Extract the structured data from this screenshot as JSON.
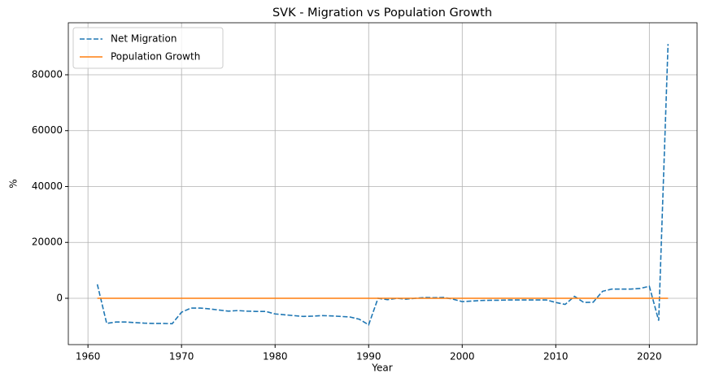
{
  "chart_data": {
    "type": "line",
    "title": "SVK - Migration vs Population Growth",
    "xlabel": "Year",
    "ylabel": "%",
    "x": [
      1961,
      1962,
      1963,
      1964,
      1965,
      1966,
      1967,
      1968,
      1969,
      1970,
      1971,
      1972,
      1973,
      1974,
      1975,
      1976,
      1977,
      1978,
      1979,
      1980,
      1981,
      1982,
      1983,
      1984,
      1985,
      1986,
      1987,
      1988,
      1989,
      1990,
      1991,
      1992,
      1993,
      1994,
      1995,
      1996,
      1997,
      1998,
      1999,
      2000,
      2001,
      2002,
      2003,
      2004,
      2005,
      2006,
      2007,
      2008,
      2009,
      2010,
      2011,
      2012,
      2013,
      2014,
      2015,
      2016,
      2017,
      2018,
      2019,
      2020,
      2021,
      2022
    ],
    "series": [
      {
        "name": "Net Migration",
        "color": "#1f77b4",
        "linestyle": "dashed",
        "values": [
          5000,
          -9000,
          -8500,
          -8500,
          -8700,
          -8900,
          -9000,
          -9000,
          -9100,
          -5000,
          -3500,
          -3500,
          -3800,
          -4200,
          -4600,
          -4400,
          -4600,
          -4700,
          -4700,
          -5600,
          -5900,
          -6200,
          -6500,
          -6400,
          -6200,
          -6300,
          -6500,
          -6700,
          -7500,
          -9500,
          0,
          -500,
          0,
          -300,
          0,
          300,
          200,
          300,
          -300,
          -1200,
          -1000,
          -800,
          -700,
          -700,
          -600,
          -600,
          -600,
          -600,
          -600,
          -1500,
          -2200,
          700,
          -1500,
          -1400,
          2500,
          3300,
          3300,
          3300,
          3500,
          4300,
          -8000,
          91000
        ]
      },
      {
        "name": "Population Growth",
        "color": "#ff7f0e",
        "linestyle": "solid",
        "values": [
          1.1,
          1.0,
          1.0,
          0.9,
          0.9,
          0.8,
          0.8,
          0.8,
          0.7,
          0.6,
          0.9,
          1.0,
          1.0,
          1.0,
          1.0,
          1.0,
          0.9,
          0.9,
          0.9,
          0.8,
          0.7,
          0.6,
          0.6,
          0.6,
          0.6,
          0.5,
          0.5,
          0.5,
          0.4,
          0.4,
          0.5,
          0.4,
          0.4,
          0.3,
          0.2,
          0.2,
          0.2,
          0.1,
          0.1,
          0.0,
          -0.1,
          0.0,
          0.0,
          0.0,
          0.0,
          0.0,
          0.1,
          0.1,
          0.2,
          0.2,
          0.1,
          0.2,
          0.1,
          0.1,
          0.1,
          0.1,
          0.1,
          0.1,
          0.1,
          0.1,
          -0.3,
          0.0
        ]
      }
    ],
    "xlim": [
      1957.9,
      2025.1
    ],
    "xticks": [
      1960,
      1970,
      1980,
      1990,
      2000,
      2010,
      2020
    ],
    "ylim": [
      -16582,
      98618
    ],
    "yticks": [
      0,
      20000,
      40000,
      60000,
      80000
    ],
    "grid": true,
    "legend": "upper left"
  }
}
